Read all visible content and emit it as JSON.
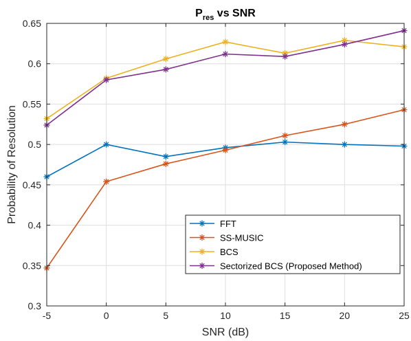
{
  "chart_data": {
    "type": "line",
    "title_main": "P",
    "title_sub": "res",
    "title_rest": " vs SNR",
    "xlabel": "SNR (dB)",
    "ylabel": "Probability of Resolution",
    "x": [
      -5,
      0,
      5,
      10,
      15,
      20,
      25
    ],
    "xlim": [
      -5,
      25
    ],
    "ylim": [
      0.3,
      0.65
    ],
    "xticks": [
      "-5",
      "0",
      "5",
      "10",
      "15",
      "20",
      "25"
    ],
    "yticks": [
      "0.3",
      "0.35",
      "0.4",
      "0.45",
      "0.5",
      "0.55",
      "0.6",
      "0.65"
    ],
    "grid": true,
    "legend_location": "bottom-right",
    "series": [
      {
        "name": "FFT",
        "color": "#0072BD",
        "marker": "asterisk",
        "values": [
          0.46,
          0.5,
          0.485,
          0.496,
          0.503,
          0.5,
          0.498
        ]
      },
      {
        "name": "SS-MUSIC",
        "color": "#D95319",
        "marker": "asterisk",
        "values": [
          0.347,
          0.454,
          0.476,
          0.493,
          0.511,
          0.525,
          0.543
        ]
      },
      {
        "name": "BCS",
        "color": "#EDB120",
        "marker": "asterisk",
        "values": [
          0.532,
          0.582,
          0.606,
          0.627,
          0.613,
          0.629,
          0.621
        ]
      },
      {
        "name": "Sectorized BCS (Proposed Method)",
        "color": "#7E2F8E",
        "marker": "asterisk",
        "values": [
          0.524,
          0.58,
          0.593,
          0.612,
          0.609,
          0.624,
          0.641
        ]
      }
    ]
  }
}
